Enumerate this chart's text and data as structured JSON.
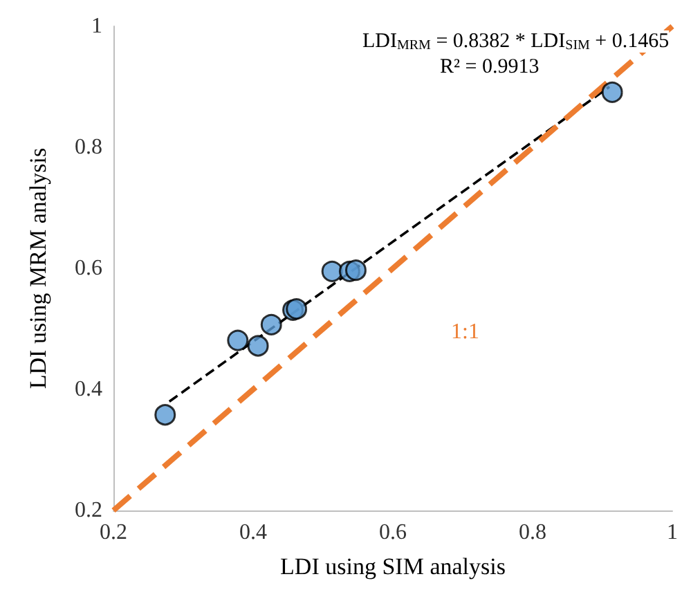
{
  "chart_data": {
    "type": "scatter",
    "xlabel": "LDI using SIM analysis",
    "ylabel": "LDI using MRM analysis",
    "xlim": [
      0.2,
      1
    ],
    "ylim": [
      0.2,
      1
    ],
    "xticks": [
      0.2,
      0.4,
      0.6,
      0.8,
      1
    ],
    "yticks": [
      0.2,
      0.4,
      0.6,
      0.8,
      1
    ],
    "grid": false,
    "marker": "circle",
    "series": [
      {
        "color": "#5b9bd5",
        "x": [
          0.274,
          0.378,
          0.407,
          0.426,
          0.457,
          0.462,
          0.513,
          0.538,
          0.547,
          0.914
        ],
        "values": [
          0.358,
          0.481,
          0.472,
          0.507,
          0.531,
          0.533,
          0.595,
          0.595,
          0.597,
          0.891
        ]
      },
      {
        "type": "line",
        "color": "#000000",
        "line_style": "dashed",
        "marker": "none",
        "x": [
          0.28,
          0.91
        ],
        "values": [
          0.38,
          0.9
        ]
      },
      {
        "type": "line",
        "color": "#ed7d31",
        "line_style": "dashed",
        "marker": "none",
        "x": [
          0.2,
          1
        ],
        "values": [
          0.2,
          1
        ]
      }
    ],
    "annotations": [
      "LDI$_{MRM}$ = 0.8382 * LDI$_{SIM}$ + 0.1465",
      "R² = 0.9913",
      "1:1"
    ]
  }
}
